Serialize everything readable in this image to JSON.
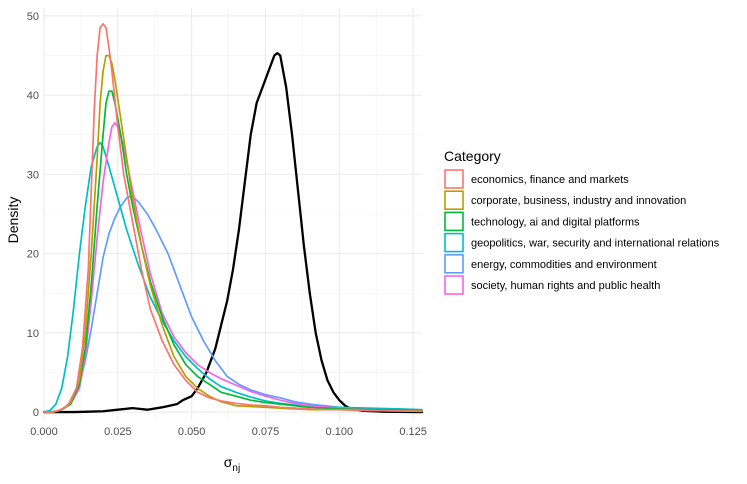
{
  "chart_data": {
    "type": "line",
    "title": "",
    "xlabel": "σ",
    "xlabel_subscript": "nj",
    "ylabel": "Density",
    "xlim": [
      0,
      0.128
    ],
    "ylim": [
      -1,
      51
    ],
    "xticks": [
      0,
      0.025,
      0.05,
      0.075,
      0.1,
      0.125
    ],
    "xtick_labels": [
      "0.000",
      "0.025",
      "0.050",
      "0.075",
      "0.100",
      "0.125"
    ],
    "yticks": [
      0,
      10,
      20,
      30,
      40,
      50
    ],
    "ytick_labels": [
      "0",
      "10",
      "20",
      "30",
      "40",
      "50"
    ],
    "grid": true,
    "legend": {
      "title": "Category",
      "placement": "right"
    },
    "series": [
      {
        "name": "economics, finance and markets",
        "color": "#F8766D",
        "in_legend": true,
        "points": [
          [
            0.0,
            0
          ],
          [
            0.002,
            0
          ],
          [
            0.005,
            0.2
          ],
          [
            0.008,
            0.8
          ],
          [
            0.011,
            3
          ],
          [
            0.013,
            8
          ],
          [
            0.015,
            18
          ],
          [
            0.016,
            28
          ],
          [
            0.017,
            38
          ],
          [
            0.018,
            45
          ],
          [
            0.019,
            48.5
          ],
          [
            0.02,
            49
          ],
          [
            0.021,
            48.5
          ],
          [
            0.022,
            46
          ],
          [
            0.023,
            43
          ],
          [
            0.025,
            36
          ],
          [
            0.027,
            30
          ],
          [
            0.03,
            24
          ],
          [
            0.033,
            18
          ],
          [
            0.036,
            13
          ],
          [
            0.04,
            9
          ],
          [
            0.044,
            6
          ],
          [
            0.048,
            4
          ],
          [
            0.052,
            2.5
          ],
          [
            0.056,
            1.8
          ],
          [
            0.06,
            1.4
          ],
          [
            0.065,
            1.1
          ],
          [
            0.07,
            0.9
          ],
          [
            0.075,
            0.8
          ],
          [
            0.08,
            0.6
          ],
          [
            0.085,
            0.5
          ],
          [
            0.09,
            0.4
          ],
          [
            0.095,
            0.3
          ],
          [
            0.1,
            0.3
          ],
          [
            0.11,
            0.2
          ],
          [
            0.128,
            0.1
          ]
        ]
      },
      {
        "name": "corporate, business, industry and innovation",
        "color": "#B79F00",
        "in_legend": true,
        "points": [
          [
            0.0,
            0
          ],
          [
            0.003,
            0
          ],
          [
            0.006,
            0.3
          ],
          [
            0.009,
            1.2
          ],
          [
            0.012,
            4
          ],
          [
            0.014,
            10
          ],
          [
            0.016,
            20
          ],
          [
            0.018,
            32
          ],
          [
            0.019,
            39
          ],
          [
            0.02,
            43
          ],
          [
            0.021,
            45
          ],
          [
            0.022,
            45
          ],
          [
            0.023,
            44
          ],
          [
            0.024,
            42
          ],
          [
            0.026,
            37
          ],
          [
            0.028,
            32
          ],
          [
            0.03,
            27
          ],
          [
            0.033,
            21
          ],
          [
            0.036,
            16
          ],
          [
            0.04,
            11
          ],
          [
            0.044,
            7
          ],
          [
            0.048,
            4.5
          ],
          [
            0.052,
            3
          ],
          [
            0.056,
            2
          ],
          [
            0.06,
            1.3
          ],
          [
            0.065,
            0.8
          ],
          [
            0.07,
            0.7
          ],
          [
            0.075,
            0.6
          ],
          [
            0.08,
            0.5
          ],
          [
            0.085,
            0.4
          ],
          [
            0.09,
            0.3
          ],
          [
            0.1,
            0.3
          ],
          [
            0.11,
            0.2
          ],
          [
            0.128,
            0.1
          ]
        ]
      },
      {
        "name": "technology, ai and digital platforms",
        "color": "#00BA38",
        "in_legend": true,
        "points": [
          [
            0.0,
            0
          ],
          [
            0.003,
            0
          ],
          [
            0.006,
            0.3
          ],
          [
            0.009,
            1
          ],
          [
            0.012,
            3.5
          ],
          [
            0.014,
            8
          ],
          [
            0.016,
            16
          ],
          [
            0.018,
            26
          ],
          [
            0.02,
            35
          ],
          [
            0.021,
            39
          ],
          [
            0.022,
            40.5
          ],
          [
            0.023,
            40.5
          ],
          [
            0.024,
            39
          ],
          [
            0.026,
            35
          ],
          [
            0.028,
            30
          ],
          [
            0.03,
            26
          ],
          [
            0.033,
            21
          ],
          [
            0.036,
            16.5
          ],
          [
            0.04,
            12
          ],
          [
            0.044,
            8.5
          ],
          [
            0.048,
            6
          ],
          [
            0.052,
            4.5
          ],
          [
            0.056,
            3.5
          ],
          [
            0.06,
            2.5
          ],
          [
            0.065,
            2
          ],
          [
            0.07,
            1.5
          ],
          [
            0.075,
            1.2
          ],
          [
            0.08,
            1
          ],
          [
            0.085,
            0.8
          ],
          [
            0.09,
            0.6
          ],
          [
            0.1,
            0.4
          ],
          [
            0.11,
            0.3
          ],
          [
            0.128,
            0.2
          ]
        ]
      },
      {
        "name": "geopolitics, war, security and international relations",
        "color": "#00BFC4",
        "in_legend": true,
        "points": [
          [
            0.0,
            0
          ],
          [
            0.002,
            0.2
          ],
          [
            0.004,
            1
          ],
          [
            0.006,
            3
          ],
          [
            0.008,
            7
          ],
          [
            0.01,
            13
          ],
          [
            0.012,
            20
          ],
          [
            0.014,
            26
          ],
          [
            0.016,
            31
          ],
          [
            0.018,
            33.5
          ],
          [
            0.019,
            34
          ],
          [
            0.02,
            33.5
          ],
          [
            0.022,
            31
          ],
          [
            0.025,
            27
          ],
          [
            0.028,
            23
          ],
          [
            0.032,
            18.5
          ],
          [
            0.036,
            14.5
          ],
          [
            0.04,
            11.5
          ],
          [
            0.044,
            9
          ],
          [
            0.048,
            7
          ],
          [
            0.052,
            5.5
          ],
          [
            0.056,
            4.2
          ],
          [
            0.06,
            3.2
          ],
          [
            0.065,
            2.5
          ],
          [
            0.07,
            1.9
          ],
          [
            0.075,
            1.4
          ],
          [
            0.08,
            1.1
          ],
          [
            0.085,
            0.9
          ],
          [
            0.09,
            0.7
          ],
          [
            0.1,
            0.6
          ],
          [
            0.11,
            0.5
          ],
          [
            0.12,
            0.4
          ],
          [
            0.128,
            0.3
          ]
        ]
      },
      {
        "name": "energy, commodities and environment",
        "color": "#619CFF",
        "in_legend": true,
        "points": [
          [
            0.0,
            0
          ],
          [
            0.003,
            0
          ],
          [
            0.006,
            0.3
          ],
          [
            0.009,
            1.2
          ],
          [
            0.012,
            3.5
          ],
          [
            0.014,
            6.5
          ],
          [
            0.016,
            10.5
          ],
          [
            0.018,
            15
          ],
          [
            0.02,
            19.5
          ],
          [
            0.022,
            22.5
          ],
          [
            0.024,
            24.5
          ],
          [
            0.026,
            26
          ],
          [
            0.028,
            27
          ],
          [
            0.029,
            27.2
          ],
          [
            0.03,
            27.2
          ],
          [
            0.032,
            26.5
          ],
          [
            0.035,
            25
          ],
          [
            0.038,
            23
          ],
          [
            0.042,
            20
          ],
          [
            0.046,
            16
          ],
          [
            0.05,
            12
          ],
          [
            0.054,
            9
          ],
          [
            0.058,
            6.5
          ],
          [
            0.062,
            4.5
          ],
          [
            0.066,
            3.5
          ],
          [
            0.07,
            2.8
          ],
          [
            0.075,
            2.2
          ],
          [
            0.08,
            1.8
          ],
          [
            0.085,
            1.3
          ],
          [
            0.09,
            1
          ],
          [
            0.095,
            0.8
          ],
          [
            0.1,
            0.6
          ],
          [
            0.11,
            0.4
          ],
          [
            0.12,
            0.3
          ],
          [
            0.128,
            0.2
          ]
        ]
      },
      {
        "name": "society, human rights and public health",
        "color": "#F564E3",
        "in_legend": true,
        "points": [
          [
            0.0,
            0
          ],
          [
            0.003,
            0
          ],
          [
            0.006,
            0.3
          ],
          [
            0.009,
            1
          ],
          [
            0.012,
            3
          ],
          [
            0.014,
            7
          ],
          [
            0.016,
            14
          ],
          [
            0.018,
            22
          ],
          [
            0.02,
            29
          ],
          [
            0.022,
            34
          ],
          [
            0.023,
            36
          ],
          [
            0.024,
            36.5
          ],
          [
            0.025,
            36
          ],
          [
            0.027,
            33.5
          ],
          [
            0.03,
            28
          ],
          [
            0.033,
            22.5
          ],
          [
            0.036,
            17.5
          ],
          [
            0.04,
            12.5
          ],
          [
            0.044,
            9.5
          ],
          [
            0.048,
            7.5
          ],
          [
            0.052,
            6
          ],
          [
            0.056,
            5
          ],
          [
            0.06,
            4.2
          ],
          [
            0.065,
            3.4
          ],
          [
            0.07,
            2.6
          ],
          [
            0.075,
            2
          ],
          [
            0.08,
            1.5
          ],
          [
            0.085,
            1.1
          ],
          [
            0.09,
            0.8
          ],
          [
            0.1,
            0.5
          ],
          [
            0.11,
            0.3
          ],
          [
            0.128,
            0.2
          ]
        ]
      },
      {
        "name": "",
        "color": "#000000",
        "in_legend": false,
        "points": [
          [
            0.0,
            0
          ],
          [
            0.01,
            0
          ],
          [
            0.015,
            0.05
          ],
          [
            0.02,
            0.1
          ],
          [
            0.025,
            0.3
          ],
          [
            0.03,
            0.5
          ],
          [
            0.035,
            0.3
          ],
          [
            0.04,
            0.6
          ],
          [
            0.045,
            1
          ],
          [
            0.047,
            1.5
          ],
          [
            0.05,
            2
          ],
          [
            0.052,
            3
          ],
          [
            0.055,
            5
          ],
          [
            0.058,
            8
          ],
          [
            0.06,
            11
          ],
          [
            0.062,
            14
          ],
          [
            0.064,
            18
          ],
          [
            0.066,
            23
          ],
          [
            0.068,
            29
          ],
          [
            0.07,
            35
          ],
          [
            0.072,
            39
          ],
          [
            0.074,
            41
          ],
          [
            0.076,
            43
          ],
          [
            0.078,
            45
          ],
          [
            0.079,
            45.3
          ],
          [
            0.08,
            45
          ],
          [
            0.082,
            41
          ],
          [
            0.084,
            35
          ],
          [
            0.086,
            28
          ],
          [
            0.088,
            21
          ],
          [
            0.09,
            15
          ],
          [
            0.092,
            10
          ],
          [
            0.094,
            6.5
          ],
          [
            0.096,
            4
          ],
          [
            0.098,
            2.5
          ],
          [
            0.1,
            1.5
          ],
          [
            0.102,
            0.8
          ],
          [
            0.104,
            0.4
          ],
          [
            0.108,
            0.15
          ],
          [
            0.115,
            0.05
          ],
          [
            0.128,
            0
          ]
        ]
      }
    ]
  }
}
